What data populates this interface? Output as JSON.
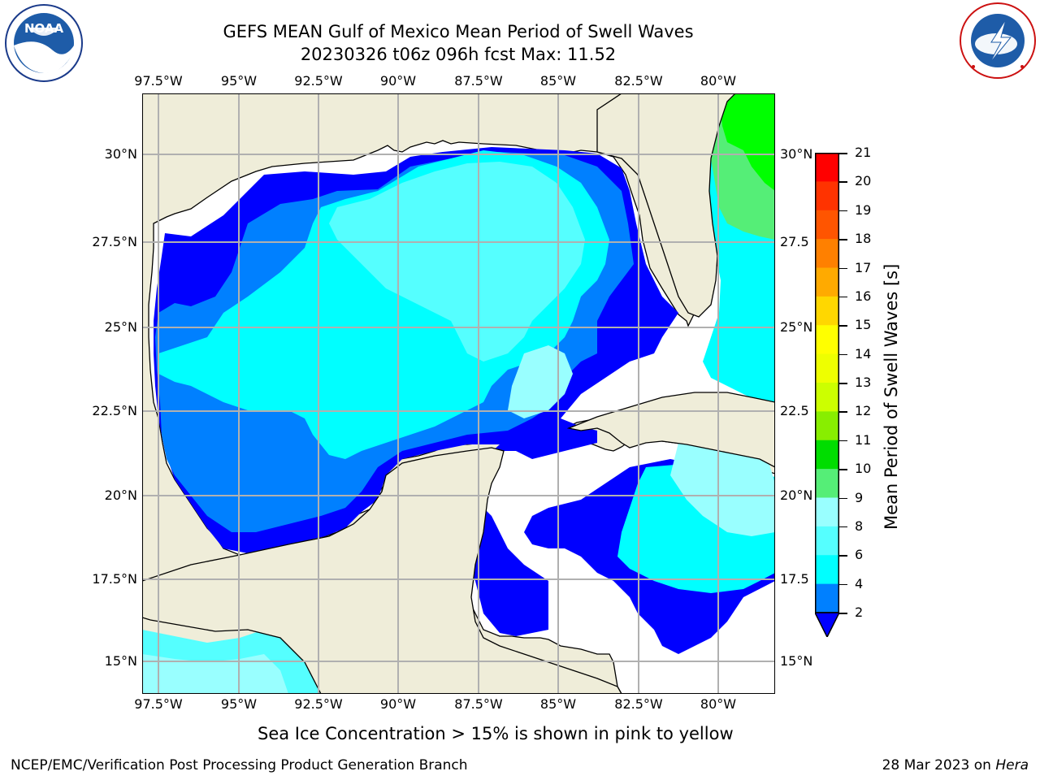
{
  "header": {
    "title_line1": "GEFS MEAN Gulf of Mexico Mean Period of Swell Waves",
    "title_line2": "20230326 t06z 096h fcst   Max: 11.52"
  },
  "logos": {
    "noaa": "NOAA",
    "nws": "NATIONAL WEATHER SERVICE"
  },
  "map": {
    "lon_ticks": [
      "97.5°W",
      "95°W",
      "92.5°W",
      "90°W",
      "87.5°W",
      "85°W",
      "82.5°W",
      "80°W"
    ],
    "lat_ticks_left": [
      "30°N",
      "27.5°N",
      "25°N",
      "22.5°N",
      "20°N",
      "17.5°N",
      "15°N"
    ],
    "lat_ticks_right": [
      "30°N",
      "27.5",
      "25°N",
      "22.5",
      "20°N",
      "17.5",
      "15°N"
    ],
    "colors": {
      "land": "#efedd9",
      "grid": "#b0b0b0",
      "no_data": "#ffffff"
    }
  },
  "colorbar": {
    "title": "Mean Period of Swell Waves [s]",
    "labels": [
      "21",
      "20",
      "19",
      "18",
      "17",
      "16",
      "15",
      "14",
      "13",
      "12",
      "11",
      "10",
      "9",
      "8",
      "6",
      "4",
      "2"
    ],
    "colors": [
      "#ff0000",
      "#ff3300",
      "#ff5500",
      "#ff8000",
      "#ffaa00",
      "#ffd700",
      "#ffff00",
      "#eeff00",
      "#ccff00",
      "#88ee00",
      "#00dd00",
      "#55ee77",
      "#99ffff",
      "#55ffff",
      "#00ffff",
      "#0080ff",
      "#0000ff"
    ]
  },
  "caption": "Sea Ice Concentration > 15% is shown in pink to yellow",
  "footer": {
    "left": "NCEP/EMC/Verification Post Processing Product Generation Branch",
    "right_date": "28 Mar 2023 on ",
    "right_machine": "Hera"
  }
}
